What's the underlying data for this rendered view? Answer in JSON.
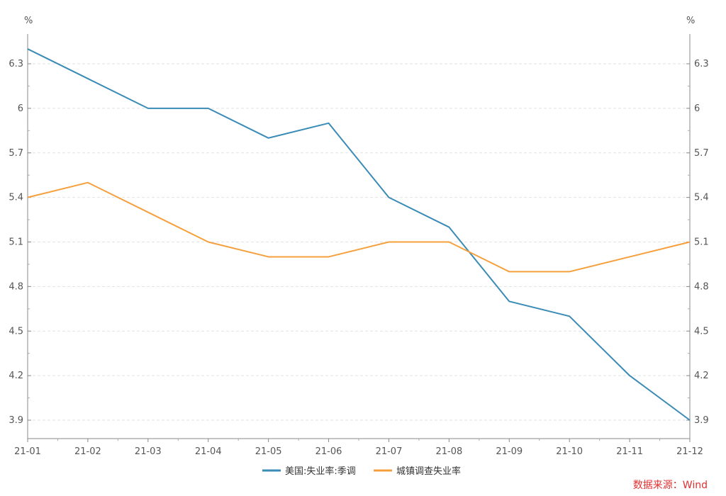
{
  "chart_data": {
    "type": "line",
    "unit_left": "%",
    "unit_right": "%",
    "categories": [
      "21-01",
      "21-02",
      "21-03",
      "21-04",
      "21-05",
      "21-06",
      "21-07",
      "21-08",
      "21-09",
      "21-10",
      "21-11",
      "21-12"
    ],
    "ylim": [
      3.8,
      6.6
    ],
    "yticks": [
      "3.9",
      "4.2",
      "4.5",
      "4.8",
      "5.1",
      "5.4",
      "5.7",
      "6",
      "6.3"
    ],
    "grid": "horizontal dashed",
    "legend_position": "bottom",
    "series": [
      {
        "name": "美国:失业率:季调",
        "color": "#3a8bb5",
        "values": [
          6.4,
          6.2,
          6.0,
          6.0,
          5.8,
          5.9,
          5.4,
          5.2,
          4.7,
          4.6,
          4.2,
          3.9
        ]
      },
      {
        "name": "城镇调查失业率",
        "color": "#f5a03c",
        "values": [
          5.4,
          5.5,
          5.3,
          5.1,
          5.0,
          5.0,
          5.1,
          5.1,
          4.9,
          4.9,
          5.0,
          5.1
        ]
      }
    ]
  },
  "source_text": "数据来源：Wind"
}
